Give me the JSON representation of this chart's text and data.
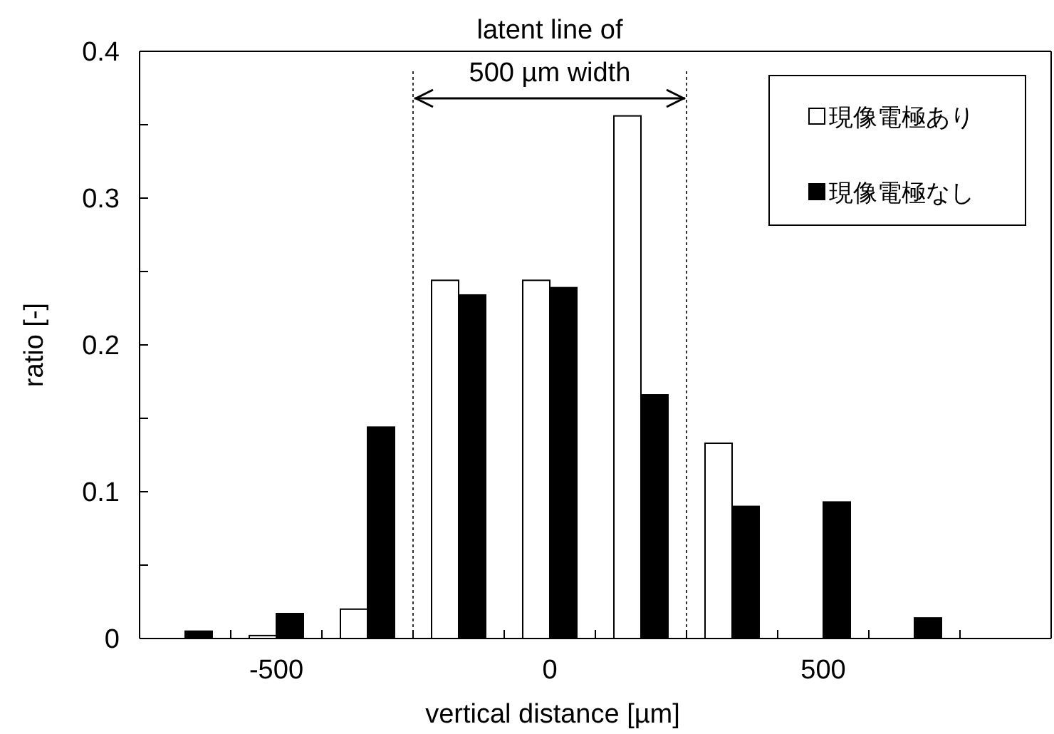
{
  "chart_data": {
    "type": "bar",
    "xlabel": "vertical distance [µm]",
    "ylabel": "ratio [-]",
    "categories": [
      null,
      "-500",
      null,
      null,
      "0",
      null,
      null,
      "500",
      null,
      null
    ],
    "series": [
      {
        "name": "現像電極あり",
        "color": "#ffffff",
        "values": [
          0,
          0.002,
          0.02,
          0.244,
          0.244,
          0.356,
          0.133,
          0,
          0,
          0
        ]
      },
      {
        "name": "現像電極なし",
        "color": "#000000",
        "values": [
          0.005,
          0.017,
          0.144,
          0.234,
          0.239,
          0.166,
          0.09,
          0.093,
          0.014,
          0
        ]
      }
    ],
    "ylim": [
      0,
      0.4
    ],
    "yticks": [
      0,
      {
        "value": 0.05,
        "label": null
      },
      0.1,
      {
        "value": 0.15,
        "label": null
      },
      0.2,
      {
        "value": 0.25,
        "label": null
      },
      0.3,
      {
        "value": 0.35,
        "label": null
      },
      0.4
    ],
    "annotations": [
      "latent line of 500 µm width"
    ],
    "grid": false,
    "legend": "top right"
  }
}
